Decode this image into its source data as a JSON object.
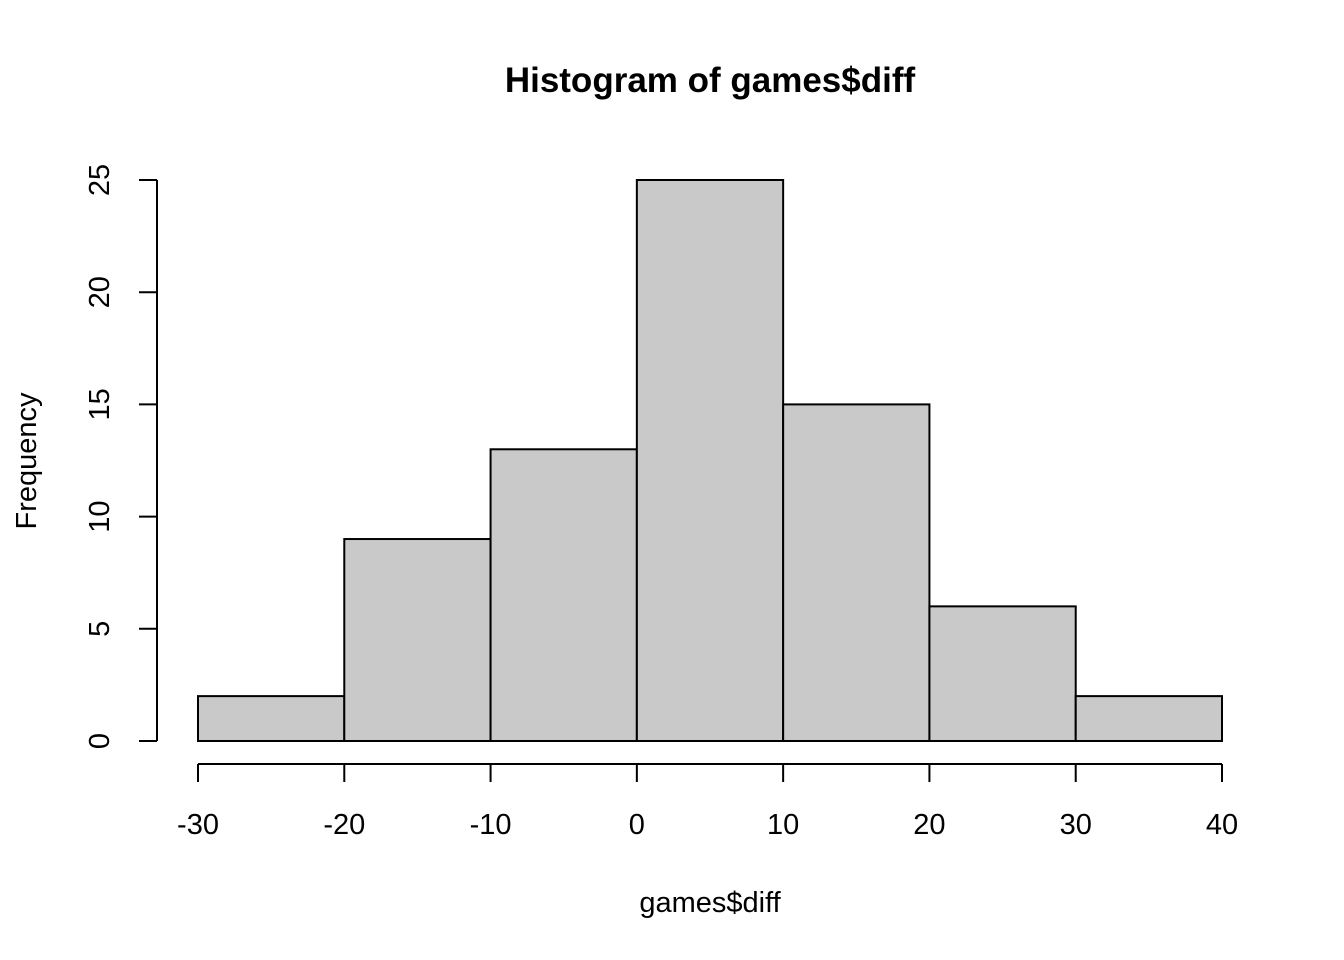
{
  "chart_data": {
    "type": "bar",
    "title": "Histogram of games$diff",
    "xlabel": "games$diff",
    "ylabel": "Frequency",
    "bins": [
      {
        "from": -30,
        "to": -20,
        "count": 2
      },
      {
        "from": -20,
        "to": -10,
        "count": 9
      },
      {
        "from": -10,
        "to": 0,
        "count": 13
      },
      {
        "from": 0,
        "to": 10,
        "count": 25
      },
      {
        "from": 10,
        "to": 20,
        "count": 15
      },
      {
        "from": 20,
        "to": 30,
        "count": 6
      },
      {
        "from": 30,
        "to": 40,
        "count": 2
      }
    ],
    "xlim": [
      -30,
      40
    ],
    "ylim": [
      0,
      25
    ],
    "x_ticks": [
      -30,
      -20,
      -10,
      0,
      10,
      20,
      30,
      40
    ],
    "y_ticks": [
      0,
      5,
      10,
      15,
      20,
      25
    ],
    "bar_color": "#c9c9c9",
    "grid": false,
    "legend": "none"
  }
}
